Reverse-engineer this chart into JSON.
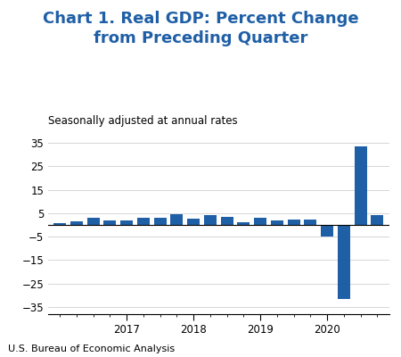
{
  "title_line1": "Chart 1. Real GDP: Percent Change",
  "title_line2": "from Preceding Quarter",
  "subtitle": "Seasonally adjusted at annual rates",
  "footnote": "U.S. Bureau of Economic Analysis",
  "bar_color": "#1F5FA6",
  "background_color": "#ffffff",
  "values": [
    0.8,
    1.5,
    3.2,
    2.0,
    1.8,
    3.0,
    3.2,
    4.5,
    2.5,
    4.2,
    3.4,
    1.1,
    3.1,
    2.0,
    2.1,
    2.1,
    -5.0,
    -31.4,
    33.4,
    4.0
  ],
  "n_bars": 20,
  "year_start_indices": [
    0,
    4,
    8,
    12,
    16
  ],
  "year_tick_positions": [
    0,
    4,
    8,
    12,
    16
  ],
  "xlabels": [
    "2017",
    "2018",
    "2019",
    "2020"
  ],
  "xlabel_bar_indices": [
    4,
    8,
    12,
    16
  ],
  "ylim": [
    -38,
    38
  ],
  "yticks": [
    -35,
    -25,
    -15,
    -5,
    5,
    15,
    25,
    35
  ],
  "ytick_labels": [
    "−35",
    "−25",
    "−15",
    "−5",
    "5",
    "15",
    "25",
    "35"
  ],
  "title_color": "#1F5FA6",
  "title_fontsize": 13,
  "subtitle_fontsize": 8.5,
  "axis_fontsize": 8.5,
  "footnote_fontsize": 8,
  "grid_color": "#d0d0d0",
  "zero_line_color": "#000000",
  "spine_color": "#000000"
}
